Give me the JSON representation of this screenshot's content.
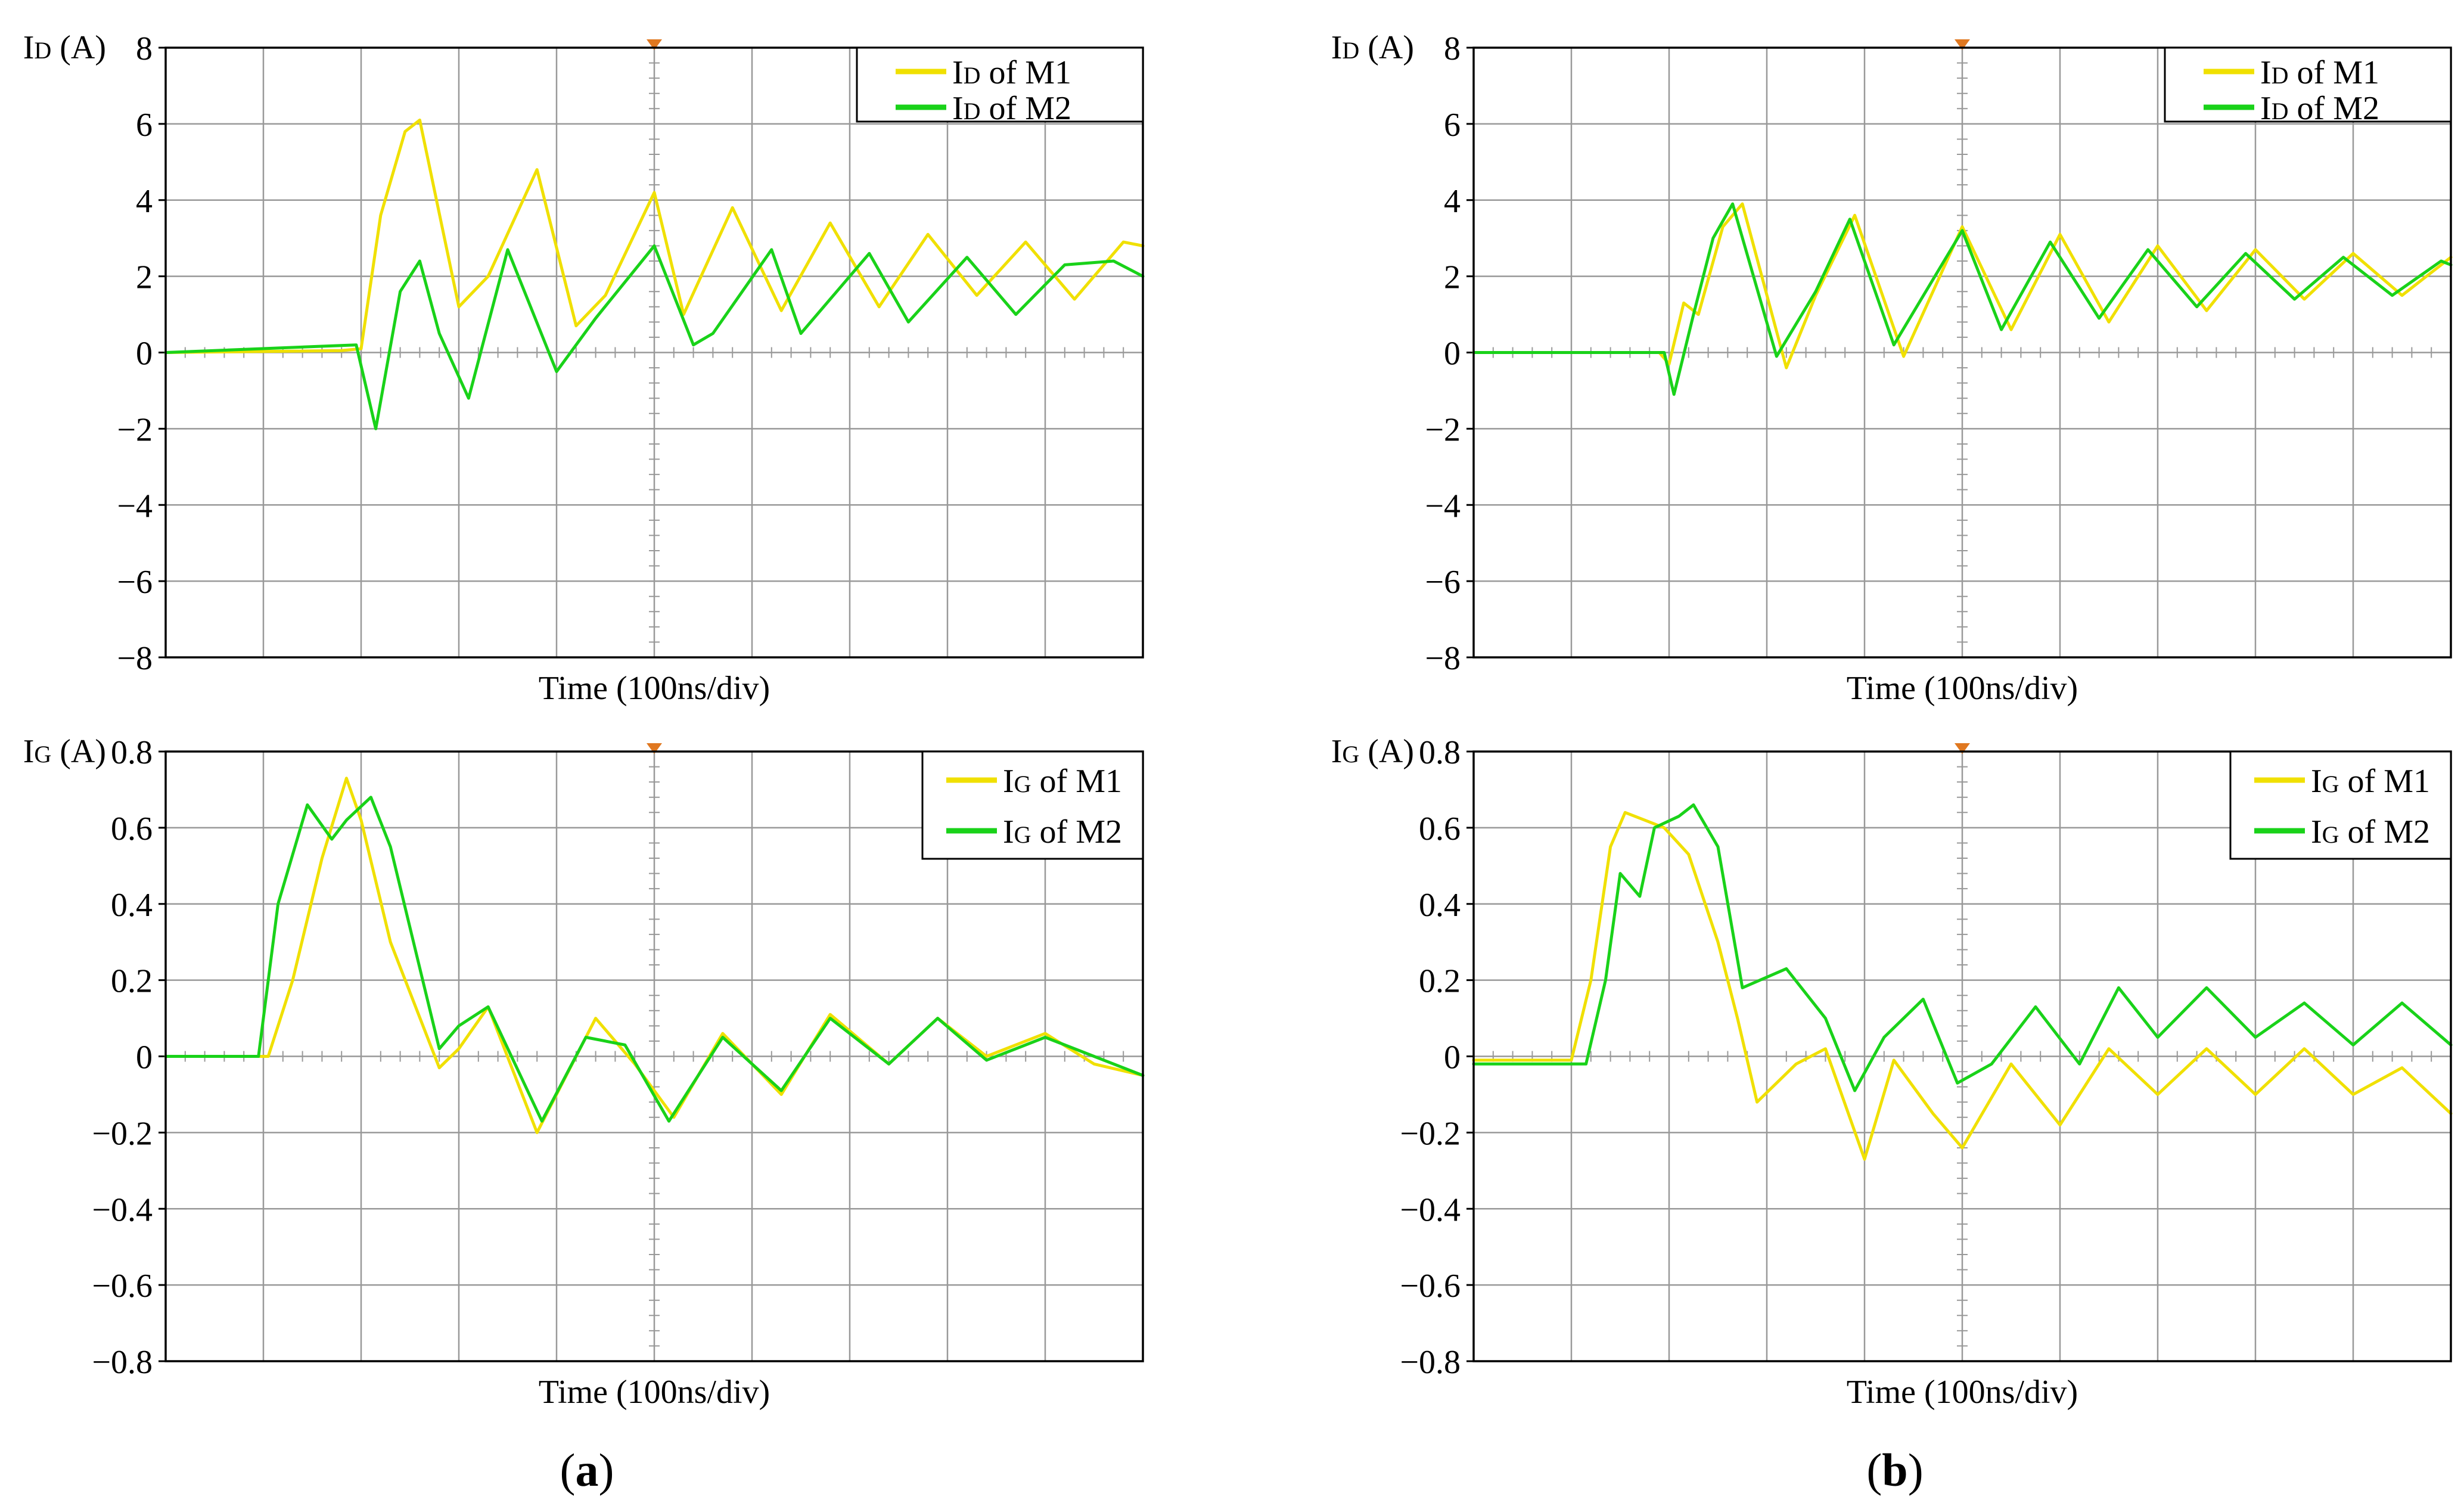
{
  "colors": {
    "m1": "#f0e000",
    "m2": "#19d219",
    "grid": "#999999",
    "axis": "#000000",
    "marker": "#e07820"
  },
  "panels": [
    {
      "id": "a",
      "label": "a",
      "label_open": "(",
      "label_close": ")"
    },
    {
      "id": "b",
      "label": "b",
      "label_open": "(",
      "label_close": ")"
    }
  ],
  "chart_data": [
    {
      "type": "line",
      "panel": "a",
      "quantity": "ID",
      "ylabel": {
        "main": "I",
        "sub": "D",
        "unit": "(A)"
      },
      "xlabel": "Time (100ns/div)",
      "xlim": [
        0,
        10
      ],
      "ylim": [
        -8,
        8
      ],
      "yticks": [
        8,
        6,
        4,
        2,
        0,
        -2,
        -4,
        -6,
        -8
      ],
      "ytick_labels": [
        "8",
        "6",
        "4",
        "2",
        "0",
        "−2",
        "−4",
        "−6",
        "−8"
      ],
      "legend_position": "top-right",
      "series": [
        {
          "name": "ID of M1",
          "legend": {
            "main": "I",
            "sub": "D",
            "rest": " of M1"
          },
          "color_key": "m1",
          "x": [
            0,
            1.8,
            2.0,
            2.2,
            2.45,
            2.6,
            3.0,
            3.3,
            3.8,
            4.2,
            4.5,
            5.0,
            5.3,
            5.8,
            6.3,
            6.8,
            7.3,
            7.8,
            8.3,
            8.8,
            9.3,
            9.8,
            10.0
          ],
          "y": [
            0,
            0.05,
            0.1,
            3.6,
            5.8,
            6.1,
            1.2,
            2.0,
            4.8,
            0.7,
            1.5,
            4.2,
            1.0,
            3.8,
            1.1,
            3.4,
            1.2,
            3.1,
            1.5,
            2.9,
            1.4,
            2.9,
            2.8
          ]
        },
        {
          "name": "ID of M2",
          "legend": {
            "main": "I",
            "sub": "D",
            "rest": " of M2"
          },
          "color_key": "m2",
          "x": [
            0,
            1.95,
            2.15,
            2.4,
            2.6,
            2.8,
            3.1,
            3.5,
            4.0,
            4.4,
            5.0,
            5.4,
            5.6,
            6.2,
            6.5,
            7.2,
            7.6,
            8.2,
            8.7,
            9.2,
            9.7,
            10.0
          ],
          "y": [
            0,
            0.2,
            -2.0,
            1.6,
            2.4,
            0.5,
            -1.2,
            2.7,
            -0.5,
            0.9,
            2.8,
            0.2,
            0.5,
            2.7,
            0.5,
            2.6,
            0.8,
            2.5,
            1.0,
            2.3,
            2.4,
            2.0
          ]
        }
      ]
    },
    {
      "type": "line",
      "panel": "a",
      "quantity": "IG",
      "ylabel": {
        "main": "I",
        "sub": "G",
        "unit": "(A)"
      },
      "xlabel": "Time (100ns/div)",
      "xlim": [
        0,
        10
      ],
      "ylim": [
        -0.8,
        0.8
      ],
      "yticks": [
        0.8,
        0.6,
        0.4,
        0.2,
        0,
        -0.2,
        -0.4,
        -0.6,
        -0.8
      ],
      "ytick_labels": [
        "0.8",
        "0.6",
        "0.4",
        "0.2",
        "0",
        "−0.2",
        "−0.4",
        "−0.6",
        "−0.8"
      ],
      "legend_position": "top-right",
      "series": [
        {
          "name": "IG of M1",
          "legend": {
            "main": "I",
            "sub": "G",
            "rest": " of M1"
          },
          "color_key": "m1",
          "x": [
            0,
            1.05,
            1.3,
            1.6,
            1.85,
            2.0,
            2.3,
            2.8,
            3.0,
            3.3,
            3.8,
            4.4,
            4.8,
            5.2,
            5.7,
            6.3,
            6.8,
            7.4,
            7.9,
            8.4,
            9.0,
            9.5,
            10.0
          ],
          "y": [
            0,
            0,
            0.2,
            0.52,
            0.73,
            0.62,
            0.3,
            -0.03,
            0.02,
            0.13,
            -0.2,
            0.1,
            -0.02,
            -0.16,
            0.06,
            -0.1,
            0.11,
            -0.02,
            0.1,
            0.0,
            0.06,
            -0.02,
            -0.05
          ]
        },
        {
          "name": "IG of M2",
          "legend": {
            "main": "I",
            "sub": "G",
            "rest": " of M2"
          },
          "color_key": "m2",
          "x": [
            0,
            0.95,
            1.15,
            1.45,
            1.7,
            1.85,
            2.1,
            2.3,
            2.8,
            3.0,
            3.3,
            3.85,
            4.3,
            4.7,
            5.15,
            5.7,
            6.3,
            6.8,
            7.4,
            7.9,
            8.4,
            9.0,
            9.5,
            10.0
          ],
          "y": [
            0,
            0,
            0.4,
            0.66,
            0.57,
            0.62,
            0.68,
            0.55,
            0.02,
            0.08,
            0.13,
            -0.17,
            0.05,
            0.03,
            -0.17,
            0.05,
            -0.09,
            0.1,
            -0.02,
            0.1,
            -0.01,
            0.05,
            0.0,
            -0.05
          ]
        }
      ]
    },
    {
      "type": "line",
      "panel": "b",
      "quantity": "ID",
      "ylabel": {
        "main": "I",
        "sub": "D",
        "unit": "(A)"
      },
      "xlabel": "Time (100ns/div)",
      "xlim": [
        0,
        10
      ],
      "ylim": [
        -8,
        8
      ],
      "yticks": [
        8,
        6,
        4,
        2,
        0,
        -2,
        -4,
        -6,
        -8
      ],
      "ytick_labels": [
        "8",
        "6",
        "4",
        "2",
        "0",
        "−2",
        "−4",
        "−6",
        "−8"
      ],
      "legend_position": "top-right",
      "series": [
        {
          "name": "ID of M1",
          "legend": {
            "main": "I",
            "sub": "D",
            "rest": " of M1"
          },
          "color_key": "m1",
          "x": [
            0,
            1.9,
            2.0,
            2.15,
            2.3,
            2.55,
            2.75,
            3.2,
            3.5,
            3.9,
            4.4,
            5.0,
            5.5,
            6.0,
            6.5,
            7.0,
            7.5,
            8.0,
            8.5,
            9.0,
            9.5,
            10.0
          ],
          "y": [
            0,
            0,
            -0.3,
            1.3,
            1.0,
            3.3,
            3.9,
            -0.4,
            1.5,
            3.6,
            -0.1,
            3.3,
            0.6,
            3.1,
            0.8,
            2.8,
            1.1,
            2.7,
            1.4,
            2.6,
            1.5,
            2.5
          ]
        },
        {
          "name": "ID of M2",
          "legend": {
            "main": "I",
            "sub": "D",
            "rest": " of M2"
          },
          "color_key": "m2",
          "x": [
            0,
            1.95,
            2.05,
            2.25,
            2.45,
            2.65,
            3.1,
            3.5,
            3.85,
            4.3,
            5.0,
            5.4,
            5.9,
            6.4,
            6.9,
            7.4,
            7.9,
            8.4,
            8.9,
            9.4,
            9.9,
            10.0
          ],
          "y": [
            0,
            0,
            -1.1,
            1.0,
            3.0,
            3.9,
            -0.1,
            1.6,
            3.5,
            0.2,
            3.2,
            0.6,
            2.9,
            0.9,
            2.7,
            1.2,
            2.6,
            1.4,
            2.5,
            1.5,
            2.4,
            2.3
          ]
        }
      ]
    },
    {
      "type": "line",
      "panel": "b",
      "quantity": "IG",
      "ylabel": {
        "main": "I",
        "sub": "G",
        "unit": "(A)"
      },
      "xlabel": "Time (100ns/div)",
      "xlim": [
        0,
        10
      ],
      "ylim": [
        -0.8,
        0.8
      ],
      "yticks": [
        0.8,
        0.6,
        0.4,
        0.2,
        0,
        -0.2,
        -0.4,
        -0.6,
        -0.8
      ],
      "ytick_labels": [
        "0.8",
        "0.6",
        "0.4",
        "0.2",
        "0",
        "−0.2",
        "−0.4",
        "−0.6",
        "−0.8"
      ],
      "legend_position": "top-right",
      "series": [
        {
          "name": "IG of M1",
          "legend": {
            "main": "I",
            "sub": "G",
            "rest": " of M1"
          },
          "color_key": "m1",
          "x": [
            0,
            1.0,
            1.2,
            1.4,
            1.55,
            1.75,
            1.95,
            2.2,
            2.5,
            2.7,
            2.9,
            3.3,
            3.6,
            4.0,
            4.3,
            4.7,
            5.0,
            5.5,
            6.0,
            6.5,
            7.0,
            7.5,
            8.0,
            8.5,
            9.0,
            9.5,
            10.0
          ],
          "y": [
            -0.01,
            -0.01,
            0.2,
            0.55,
            0.64,
            0.62,
            0.6,
            0.53,
            0.3,
            0.1,
            -0.12,
            -0.02,
            0.02,
            -0.27,
            -0.01,
            -0.15,
            -0.24,
            -0.02,
            -0.18,
            0.02,
            -0.1,
            0.02,
            -0.1,
            0.02,
            -0.1,
            -0.03,
            -0.15
          ]
        },
        {
          "name": "IG of M2",
          "legend": {
            "main": "I",
            "sub": "G",
            "rest": " of M2"
          },
          "color_key": "m2",
          "x": [
            0,
            1.15,
            1.35,
            1.5,
            1.7,
            1.85,
            2.1,
            2.25,
            2.5,
            2.75,
            3.2,
            3.6,
            3.9,
            4.2,
            4.6,
            4.95,
            5.3,
            5.75,
            6.2,
            6.6,
            7.0,
            7.5,
            8.0,
            8.5,
            9.0,
            9.5,
            10.0
          ],
          "y": [
            -0.02,
            -0.02,
            0.2,
            0.48,
            0.42,
            0.6,
            0.63,
            0.66,
            0.55,
            0.18,
            0.23,
            0.1,
            -0.09,
            0.05,
            0.15,
            -0.07,
            -0.02,
            0.13,
            -0.02,
            0.18,
            0.05,
            0.18,
            0.05,
            0.14,
            0.03,
            0.14,
            0.03
          ]
        }
      ]
    }
  ]
}
